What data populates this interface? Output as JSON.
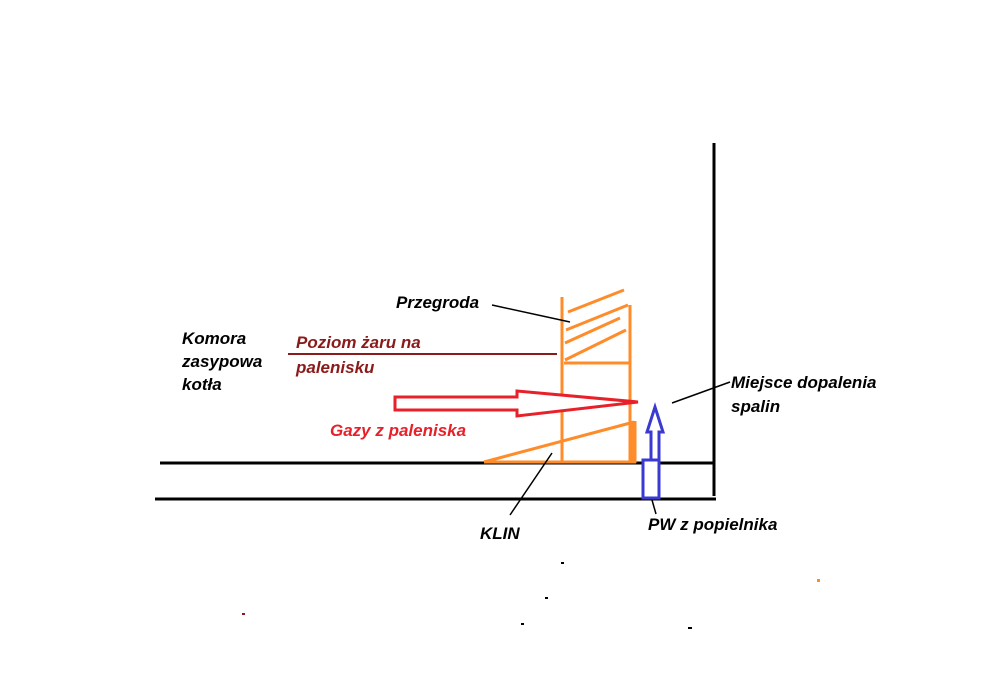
{
  "labels": {
    "przegroda": "Przegroda",
    "komora": [
      "Komora",
      "zasypowa",
      "kotła"
    ],
    "poziom": [
      "Poziom żaru na",
      "palenisku"
    ],
    "gazy": "Gazy z paleniska",
    "miejsce": [
      "Miejsce dopalenia",
      "spalin"
    ],
    "klin": "KLIN",
    "pw": "PW z popielnika"
  },
  "colors": {
    "wall": "#000000",
    "partition": "#ff8c2a",
    "ember_level": "#8b1a1a",
    "gas_arrow": "#e8202a",
    "air_arrow": "#3a3ad0"
  }
}
